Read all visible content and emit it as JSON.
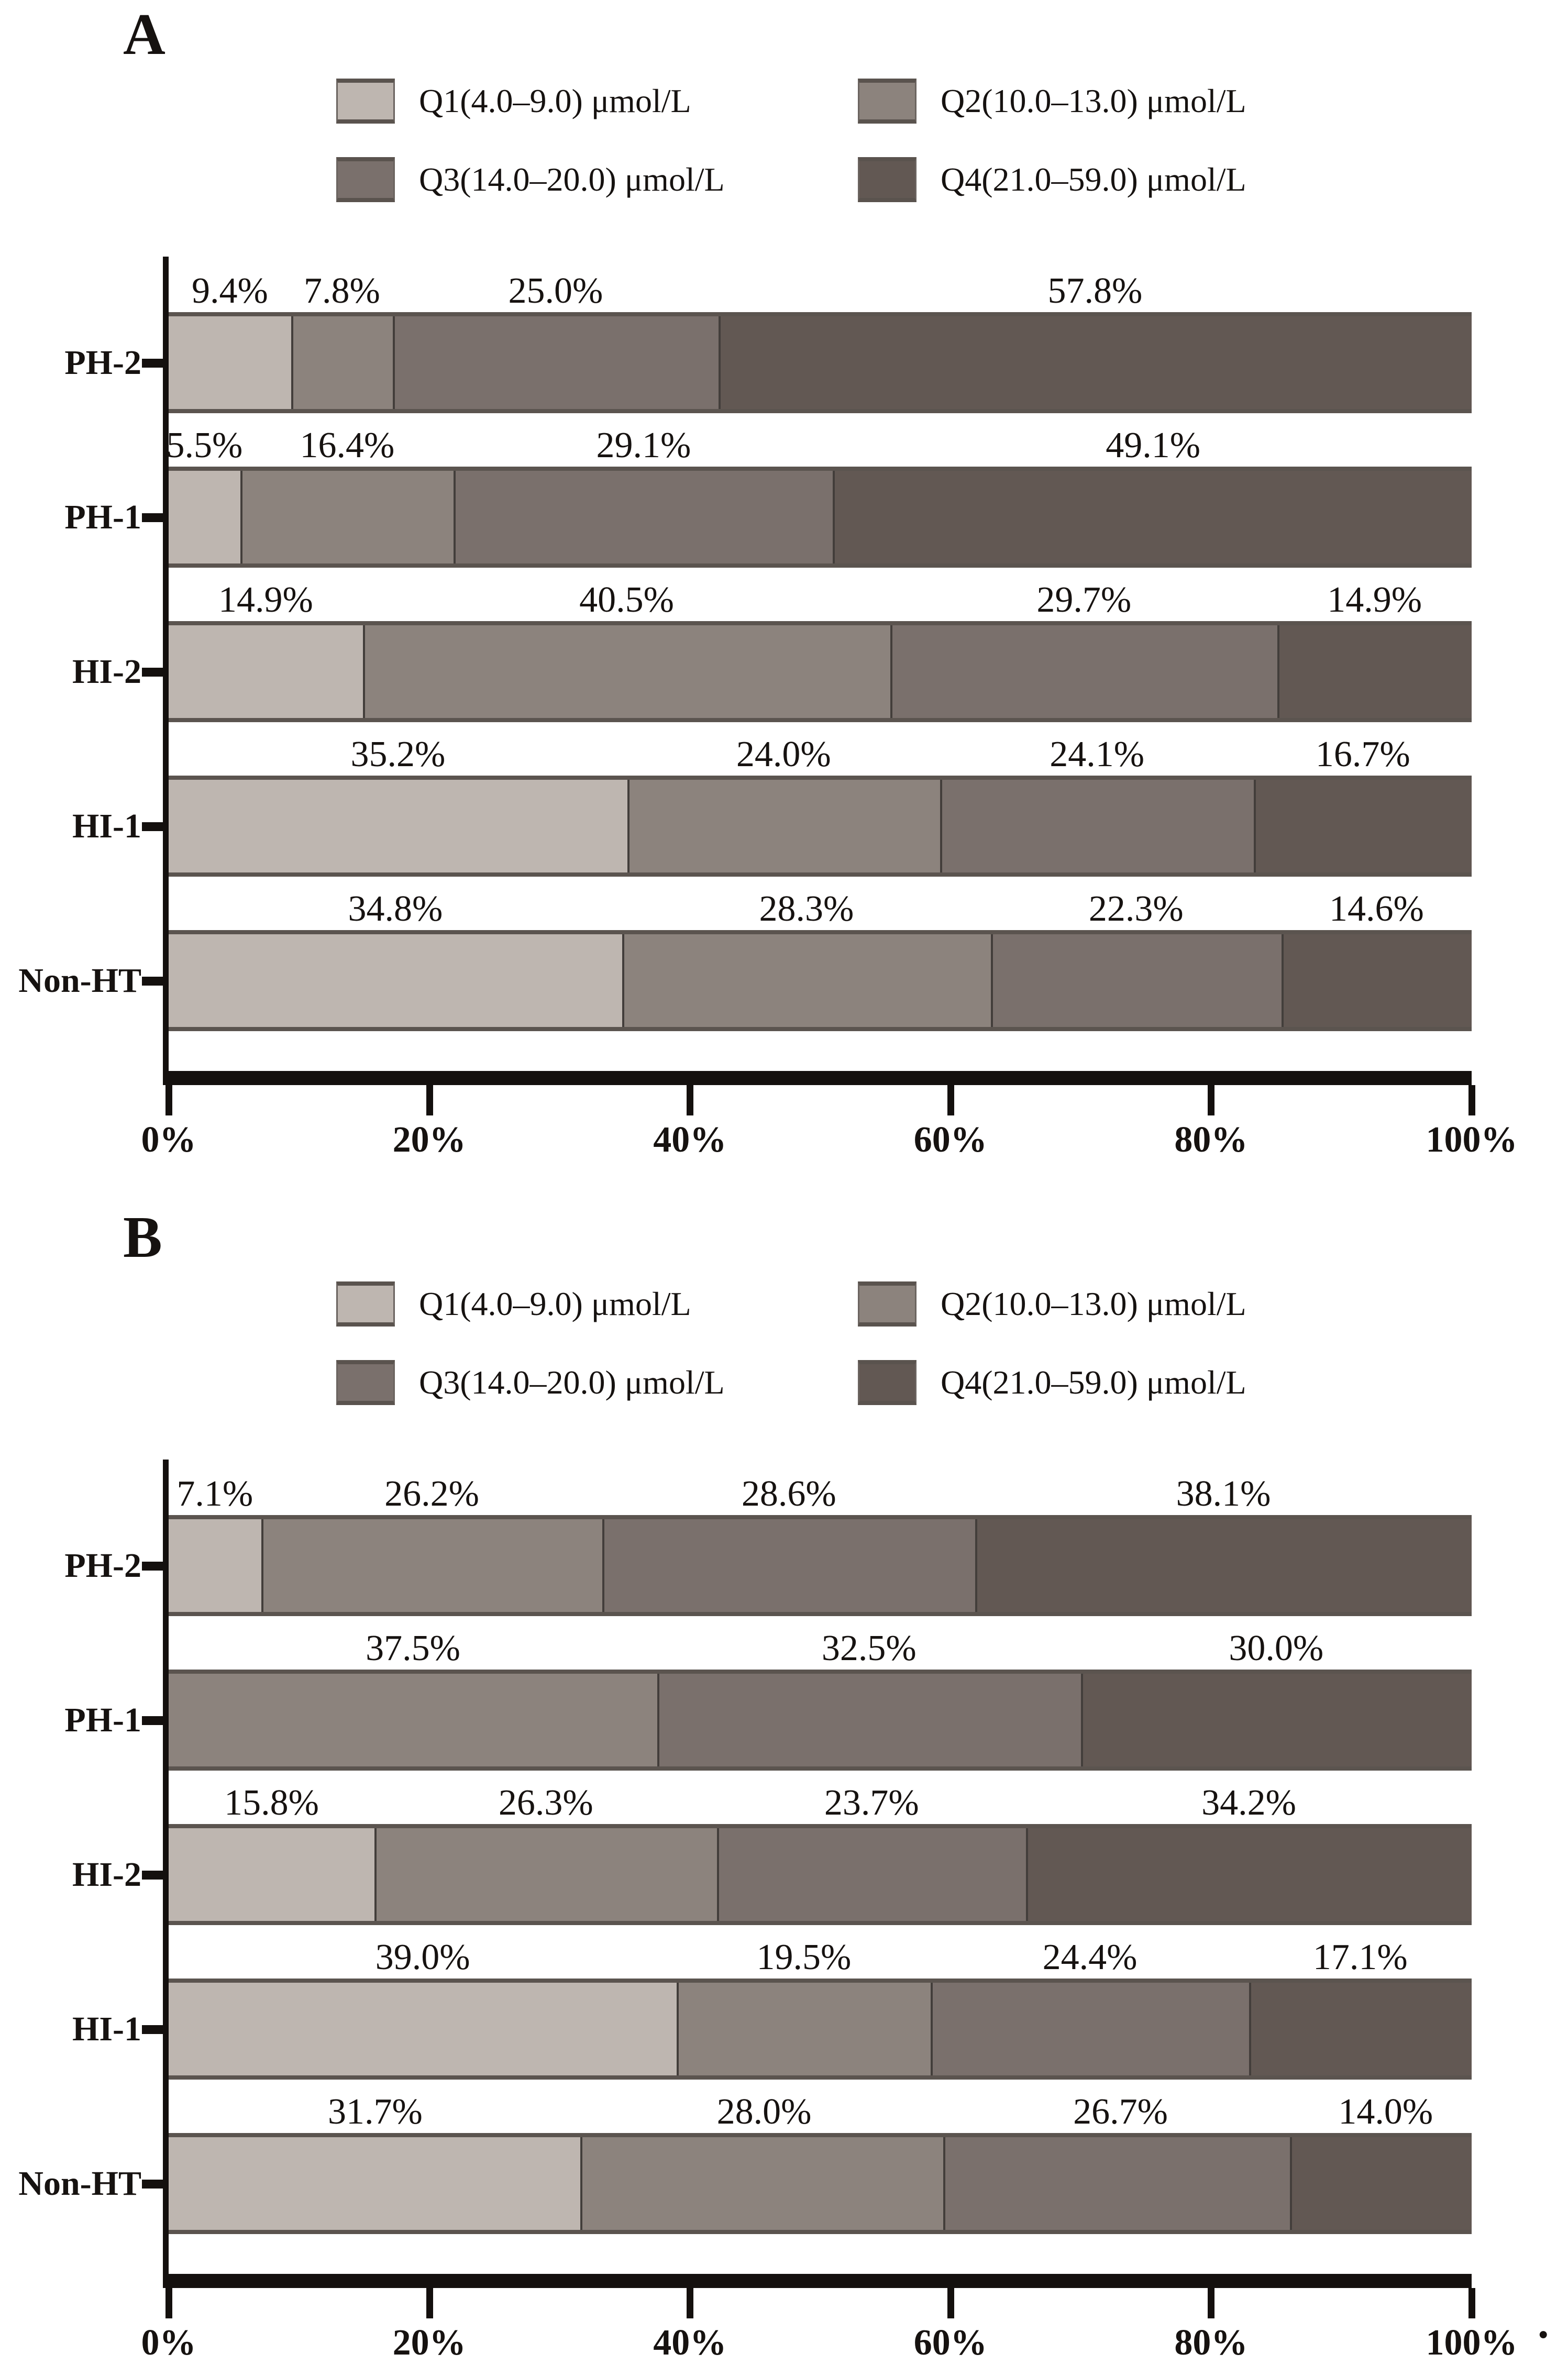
{
  "figure": {
    "background": "#ffffff",
    "text_color": "#161210",
    "trailing_period": "."
  },
  "chart_data": [
    {
      "type": "bar",
      "orientation": "horizontal",
      "stacked": true,
      "panel_label": "A",
      "xlabel": "",
      "ylabel": "",
      "xlim": [
        0,
        100
      ],
      "grid": false,
      "legend_position": "top",
      "x_ticks": [
        "0%",
        "20%",
        "40%",
        "60%",
        "80%",
        "100%"
      ],
      "categories": [
        "PH-2",
        "PH-1",
        "HI-2",
        "HI-1",
        "Non-HT"
      ],
      "series": [
        {
          "name": "Q1(4.0–9.0) μmol/L",
          "color": "#beb6b0",
          "values": [
            9.4,
            5.5,
            14.9,
            35.2,
            34.8
          ]
        },
        {
          "name": "Q2(10.0–13.0) μmol/L",
          "color": "#8c837d",
          "values": [
            7.8,
            16.4,
            40.5,
            24.0,
            28.3
          ]
        },
        {
          "name": "Q3(14.0–20.0) μmol/L",
          "color": "#7a706c",
          "values": [
            25.0,
            29.1,
            29.7,
            24.1,
            22.3
          ]
        },
        {
          "name": "Q4(21.0–59.0) μmol/L",
          "color": "#625853",
          "values": [
            57.8,
            49.1,
            14.9,
            16.7,
            14.6
          ]
        }
      ],
      "segment_labels": [
        [
          "9.4%",
          "7.8%",
          "25.0%",
          "57.8%"
        ],
        [
          "5.5%",
          "16.4%",
          "29.1%",
          "49.1%"
        ],
        [
          "14.9%",
          "40.5%",
          "29.7%",
          "14.9%"
        ],
        [
          "35.2%",
          "24.0%",
          "24.1%",
          "16.7%"
        ],
        [
          "34.8%",
          "28.3%",
          "22.3%",
          "14.6%"
        ]
      ]
    },
    {
      "type": "bar",
      "orientation": "horizontal",
      "stacked": true,
      "panel_label": "B",
      "xlabel": "",
      "ylabel": "",
      "xlim": [
        0,
        100
      ],
      "grid": false,
      "legend_position": "top",
      "x_ticks": [
        "0%",
        "20%",
        "40%",
        "60%",
        "80%",
        "100%"
      ],
      "categories": [
        "PH-2",
        "PH-1",
        "HI-2",
        "HI-1",
        "Non-HT"
      ],
      "series": [
        {
          "name": "Q1(4.0–9.0) μmol/L",
          "color": "#beb6b0",
          "values": [
            7.1,
            0,
            15.8,
            39.0,
            31.7
          ]
        },
        {
          "name": "Q2(10.0–13.0) μmol/L",
          "color": "#8c837d",
          "values": [
            26.2,
            37.5,
            26.3,
            19.5,
            28.0
          ]
        },
        {
          "name": "Q3(14.0–20.0) μmol/L",
          "color": "#7a706c",
          "values": [
            28.6,
            32.5,
            23.7,
            24.4,
            26.7
          ]
        },
        {
          "name": "Q4(21.0–59.0) μmol/L",
          "color": "#625853",
          "values": [
            38.1,
            30.0,
            34.2,
            17.1,
            14.0
          ]
        }
      ],
      "segment_labels": [
        [
          "7.1%",
          "26.2%",
          "28.6%",
          "38.1%"
        ],
        [
          "",
          "37.5%",
          "32.5%",
          "30.0%"
        ],
        [
          "15.8%",
          "26.3%",
          "23.7%",
          "34.2%"
        ],
        [
          "39.0%",
          "19.5%",
          "24.4%",
          "17.1%"
        ],
        [
          "31.7%",
          "28.0%",
          "26.7%",
          "14.0%"
        ]
      ]
    }
  ]
}
